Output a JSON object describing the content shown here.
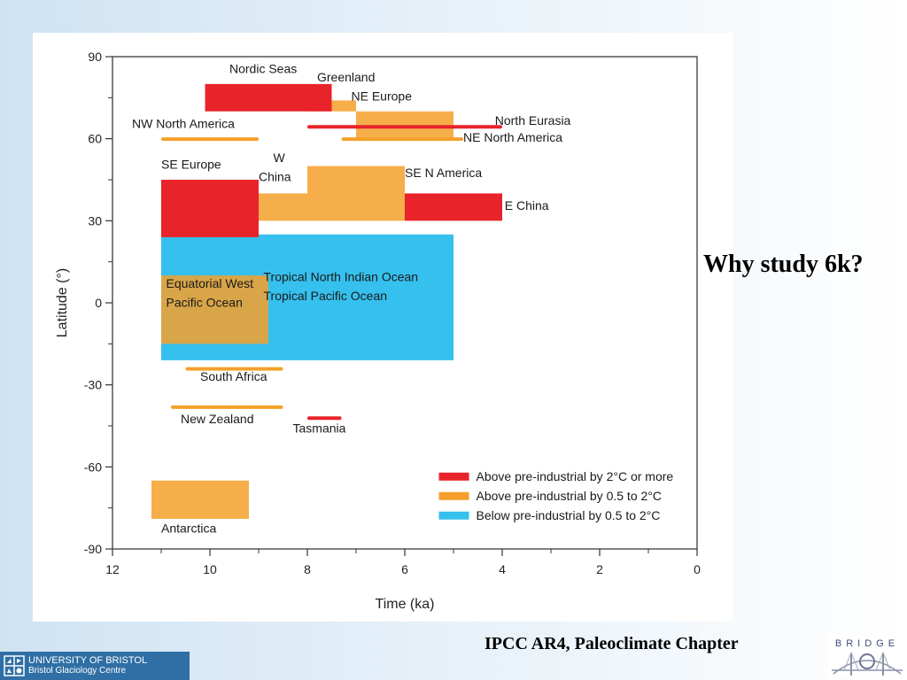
{
  "slide": {
    "side_title": "Why study 6k?",
    "citation": "IPCC AR4, Paleoclimate Chapter",
    "footer": {
      "university": "UNIVERSITY OF BRISTOL",
      "centre": "Bristol Glaciology Centre",
      "logo_icon": "bristol-university-crest",
      "bridge_logo_text": "BRIDGE"
    }
  },
  "chart_data": {
    "type": "range-bar",
    "xlabel": "Time (ka)",
    "ylabel": "Latitude (°)",
    "xlim": [
      12,
      0
    ],
    "ylim": [
      -90,
      90
    ],
    "x_ticks": [
      12,
      10,
      8,
      6,
      4,
      2,
      0
    ],
    "y_ticks": [
      90,
      60,
      30,
      0,
      -30,
      -60,
      -90
    ],
    "legend_position": "bottom-right",
    "categories": {
      "red": {
        "label": "Above pre-industrial by 2°C or more",
        "color": "#e8232a"
      },
      "orange": {
        "label": "Above pre-industrial by 0.5 to 2°C",
        "color": "#f5a02a"
      },
      "blue": {
        "label": "Below pre-industrial by 0.5 to 2°C",
        "color": "#36c0ee"
      }
    },
    "regions": [
      {
        "name": "Nordic Seas",
        "category": "red",
        "x": [
          10.1,
          7.5
        ],
        "y": [
          70,
          80
        ]
      },
      {
        "name": "Greenland",
        "category": "orange",
        "x": [
          8.0,
          7.0
        ],
        "y": [
          70,
          74
        ]
      },
      {
        "name": "NE Europe",
        "category": "orange",
        "x": [
          7.0,
          5.0
        ],
        "y": [
          60,
          70
        ]
      },
      {
        "name": "North Eurasia",
        "category": "red",
        "x": [
          8.0,
          4.0
        ],
        "y": [
          64,
          65
        ]
      },
      {
        "name": "NW North America",
        "category": "orange",
        "x": [
          11.0,
          9.0
        ],
        "y": [
          59.5,
          60.5
        ]
      },
      {
        "name": "NE North America",
        "category": "orange",
        "x": [
          7.3,
          4.8
        ],
        "y": [
          59.5,
          60.5
        ]
      },
      {
        "name": "SE Europe",
        "category": "red",
        "x": [
          11.0,
          9.0
        ],
        "y": [
          24,
          45
        ]
      },
      {
        "name": "W China",
        "category": "orange",
        "x": [
          9.0,
          8.0
        ],
        "y": [
          30,
          40
        ]
      },
      {
        "name": "SE N America",
        "category": "orange",
        "x": [
          8.0,
          6.0
        ],
        "y": [
          30,
          50
        ]
      },
      {
        "name": "E China",
        "category": "red",
        "x": [
          6.0,
          4.0
        ],
        "y": [
          30,
          40
        ]
      },
      {
        "name": "Tropical North Indian Ocean / Tropical Pacific Ocean",
        "category": "blue",
        "x": [
          11.0,
          5.0
        ],
        "y": [
          -21,
          25
        ]
      },
      {
        "name": "Equatorial West Pacific Ocean",
        "category": "orange",
        "x": [
          11.0,
          8.8
        ],
        "y": [
          -15,
          10
        ]
      },
      {
        "name": "South Africa",
        "category": "orange",
        "x": [
          10.5,
          8.5
        ],
        "y": [
          -24.5,
          -23.5
        ]
      },
      {
        "name": "New Zealand",
        "category": "orange",
        "x": [
          10.8,
          8.5
        ],
        "y": [
          -38.5,
          -37.5
        ]
      },
      {
        "name": "Tasmania",
        "category": "red",
        "x": [
          8.0,
          7.3
        ],
        "y": [
          -42.5,
          -41.5
        ]
      },
      {
        "name": "Antarctica",
        "category": "orange",
        "x": [
          11.2,
          9.2
        ],
        "y": [
          -79,
          -65
        ]
      }
    ],
    "region_labels": [
      {
        "text": "Nordic Seas",
        "x": 9.6,
        "y": 84
      },
      {
        "text": "Greenland",
        "x": 7.8,
        "y": 81
      },
      {
        "text": "NE Europe",
        "x": 7.1,
        "y": 74
      },
      {
        "text": "NW North America",
        "x": 11.6,
        "y": 64
      },
      {
        "text": "North Eurasia",
        "x": 4.15,
        "y": 65
      },
      {
        "text": "NE North America",
        "x": 4.8,
        "y": 59
      },
      {
        "text": "SE Europe",
        "x": 11.0,
        "y": 49
      },
      {
        "text": "W",
        "x": 8.7,
        "y": 51.5
      },
      {
        "text": "China",
        "x": 9.0,
        "y": 44.5
      },
      {
        "text": "SE N America",
        "x": 6.0,
        "y": 46
      },
      {
        "text": "E China",
        "x": 3.95,
        "y": 34
      },
      {
        "text": "Tropical North Indian Ocean",
        "x": 8.9,
        "y": 8
      },
      {
        "text": "Tropical Pacific Ocean",
        "x": 8.9,
        "y": 1
      },
      {
        "text": "Equatorial West",
        "x": 10.9,
        "y": 5.5
      },
      {
        "text": "Pacific Ocean",
        "x": 10.9,
        "y": -1.5
      },
      {
        "text": "South Africa",
        "x": 10.2,
        "y": -28.5
      },
      {
        "text": "New Zealand",
        "x": 10.6,
        "y": -44
      },
      {
        "text": "Tasmania",
        "x": 8.3,
        "y": -47.5
      },
      {
        "text": "Antarctica",
        "x": 11.0,
        "y": -84
      }
    ]
  }
}
